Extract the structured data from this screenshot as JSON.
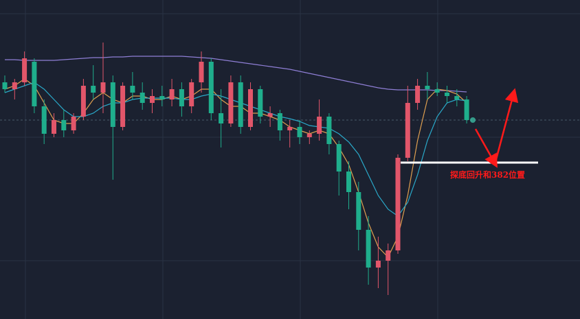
{
  "chart_data": {
    "type": "candlestick",
    "ylim": [
      0,
      465
    ],
    "up_color": "#e2566a",
    "down_color": "#1fae8c",
    "open": [
      345,
      335,
      345,
      375,
      310,
      270,
      290,
      275,
      295,
      340,
      330,
      345,
      280,
      340,
      330,
      315,
      325,
      320,
      335,
      310,
      345,
      375,
      300,
      285,
      345,
      280,
      335,
      295,
      300,
      275,
      280,
      265,
      270,
      295,
      255,
      215,
      185,
      130,
      75,
      85,
      100,
      235,
      315,
      340,
      335,
      330,
      325,
      320
    ],
    "high": [
      355,
      350,
      390,
      380,
      320,
      300,
      305,
      300,
      350,
      370,
      403,
      355,
      345,
      360,
      345,
      335,
      340,
      350,
      345,
      350,
      390,
      380,
      335,
      355,
      355,
      345,
      340,
      310,
      305,
      290,
      290,
      275,
      320,
      300,
      260,
      230,
      200,
      150,
      120,
      110,
      240,
      340,
      350,
      360,
      345,
      340,
      335,
      325
    ],
    "low": [
      330,
      320,
      340,
      300,
      255,
      265,
      265,
      270,
      290,
      320,
      300,
      203,
      275,
      320,
      305,
      300,
      310,
      310,
      295,
      300,
      330,
      290,
      250,
      280,
      270,
      275,
      285,
      280,
      260,
      250,
      255,
      255,
      260,
      240,
      180,
      160,
      100,
      50,
      45,
      35,
      95,
      230,
      305,
      320,
      325,
      315,
      310,
      285
    ],
    "close": [
      335,
      345,
      380,
      310,
      270,
      290,
      275,
      295,
      340,
      330,
      345,
      280,
      340,
      330,
      315,
      325,
      320,
      335,
      310,
      345,
      375,
      300,
      285,
      345,
      280,
      335,
      295,
      300,
      275,
      280,
      265,
      270,
      295,
      255,
      215,
      185,
      130,
      75,
      85,
      100,
      235,
      315,
      340,
      335,
      330,
      325,
      320,
      290
    ],
    "series": [
      {
        "color": "#8f7fd6",
        "values": [
          378,
          378,
          377,
          377,
          377,
          377,
          378,
          379,
          380,
          381,
          381,
          382,
          382,
          383,
          383,
          383,
          383,
          383,
          383,
          382,
          381,
          380,
          378,
          376,
          374,
          372,
          370,
          368,
          366,
          364,
          361,
          358,
          355,
          352,
          349,
          346,
          343,
          340,
          337,
          335,
          334,
          334,
          334,
          334,
          333,
          333,
          332,
          331
        ]
      },
      {
        "color": "#e0a050",
        "values": [
          335,
          340,
          350,
          340,
          315,
          290,
          285,
          285,
          300,
          320,
          330,
          320,
          315,
          325,
          325,
          320,
          320,
          325,
          320,
          325,
          335,
          335,
          320,
          310,
          310,
          300,
          300,
          295,
          290,
          280,
          275,
          270,
          275,
          270,
          250,
          225,
          185,
          140,
          105,
          90,
          120,
          180,
          260,
          320,
          335,
          333,
          328,
          315
        ]
      },
      {
        "color": "#2aa9c9",
        "values": [
          330,
          335,
          340,
          345,
          335,
          320,
          305,
          295,
          295,
          300,
          310,
          315,
          315,
          320,
          322,
          322,
          322,
          322,
          320,
          320,
          325,
          328,
          325,
          320,
          315,
          310,
          305,
          300,
          295,
          292,
          288,
          282,
          280,
          278,
          270,
          258,
          240,
          210,
          180,
          160,
          150,
          170,
          210,
          260,
          295,
          315,
          320,
          318
        ]
      }
    ],
    "annotation": "探底回升和382位置"
  }
}
